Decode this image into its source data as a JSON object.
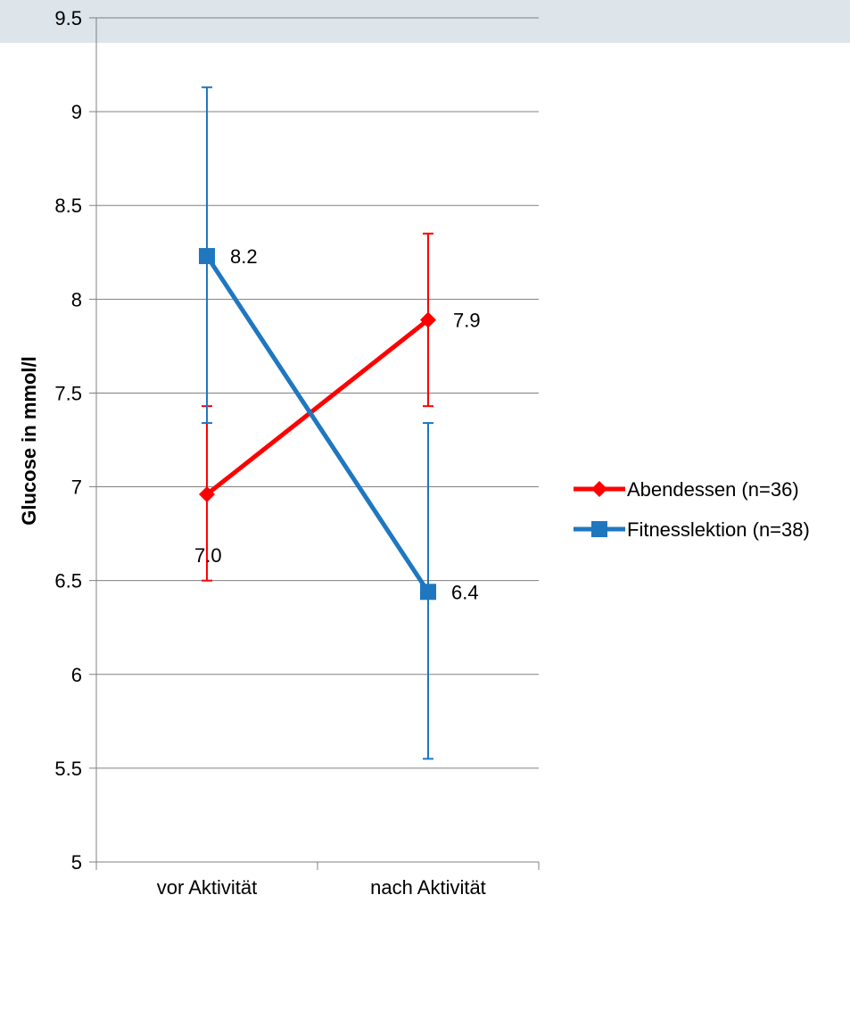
{
  "chart_data": {
    "type": "line",
    "title": "",
    "xlabel": "",
    "ylabel": "Glucose in mmol/l",
    "categories": [
      "vor Aktivität",
      "nach Aktivität"
    ],
    "ylim": [
      5,
      9.5
    ],
    "yticks": [
      "5",
      "5.5",
      "6",
      "6.5",
      "7",
      "7.5",
      "8",
      "8.5",
      "9",
      "9.5"
    ],
    "grid": "horizontal",
    "legend_position": "right",
    "series": [
      {
        "name": "Abendessen (n=36)",
        "color": "#ff0000",
        "marker": "diamond",
        "values": [
          6.96,
          7.89
        ],
        "error_low": [
          6.5,
          7.43
        ],
        "error_high": [
          7.43,
          8.35
        ],
        "labels": [
          "7.0",
          "7.9"
        ]
      },
      {
        "name": "Fitnesslektion (n=38)",
        "color": "#1f77c0",
        "marker": "square",
        "values": [
          8.23,
          6.44
        ],
        "error_low": [
          7.34,
          5.55
        ],
        "error_high": [
          9.13,
          7.34
        ],
        "labels": [
          "8.2",
          "6.4"
        ]
      }
    ]
  },
  "colors": {
    "top_band": "#dde4ea",
    "grid": "#808080",
    "axis": "#808080"
  }
}
